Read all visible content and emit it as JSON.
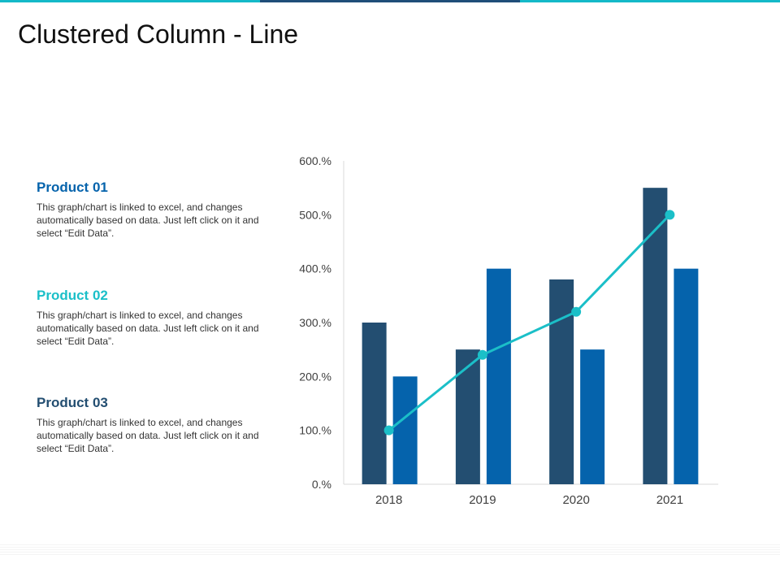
{
  "slide": {
    "title": "Clustered Column - Line"
  },
  "colors": {
    "top_bar": [
      "#14b9c8",
      "#1f4e79",
      "#14b9c8"
    ],
    "dark_navy": "#234e71",
    "blue": "#0563ac",
    "teal": "#1bbfc8",
    "product_01_heading": "#0563ac",
    "product_02_heading": "#1bbfc8",
    "product_03_heading": "#234e71"
  },
  "products": [
    {
      "label": "Product 01",
      "text": "This graph/chart is linked to excel, and changes automatically based on data. Just left click on it and select “Edit Data”."
    },
    {
      "label": "Product 02",
      "text": "This graph/chart is linked to excel, and changes automatically based on data. Just left click on it and select “Edit Data”."
    },
    {
      "label": "Product 03",
      "text": "This graph/chart is linked to excel, and changes automatically based on data. Just left click on it and select “Edit Data”."
    }
  ],
  "chart_data": {
    "type": "bar",
    "categories": [
      "2018",
      "2019",
      "2020",
      "2021"
    ],
    "series": [
      {
        "type": "bar",
        "color": "#234e71",
        "values": [
          300,
          250,
          380,
          550
        ]
      },
      {
        "type": "bar",
        "color": "#0563ac",
        "values": [
          200,
          400,
          250,
          400
        ]
      },
      {
        "type": "line",
        "color": "#1bbfc8",
        "values": [
          100,
          240,
          320,
          500
        ]
      }
    ],
    "yticks": [
      "0.%",
      "100.%",
      "200.%",
      "300.%",
      "400.%",
      "500.%",
      "600.%"
    ],
    "ylim": [
      0,
      600
    ],
    "grid": false,
    "legend": "none"
  }
}
